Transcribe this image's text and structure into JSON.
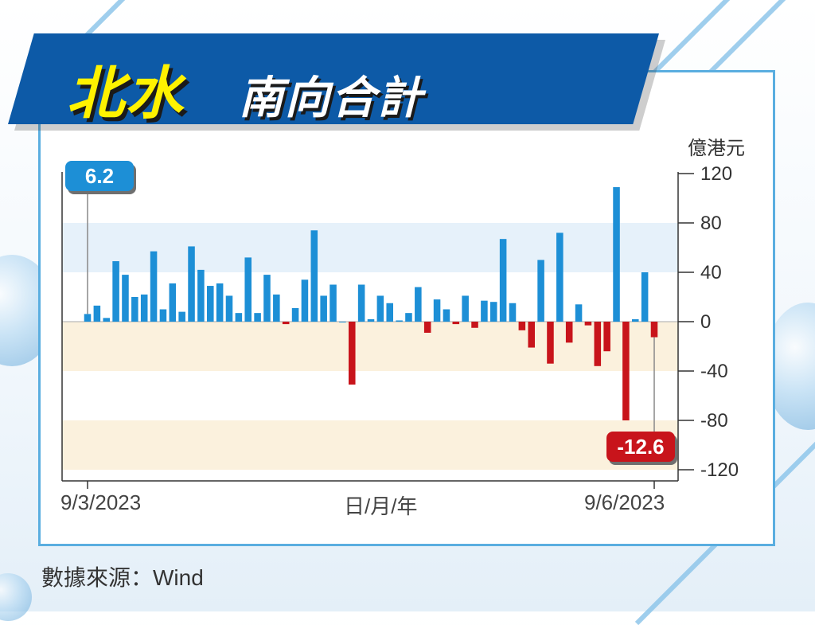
{
  "title": {
    "part1": "北水",
    "part2": "南向合計"
  },
  "source": "數據來源：Wind",
  "colors": {
    "positive": "#1d8fd6",
    "negative": "#c8141b",
    "banner": "#0d5aa7",
    "title_highlight": "#fff200"
  },
  "callouts": {
    "first_value": "6.2",
    "last_value": "-12.6"
  },
  "chart_data": {
    "type": "bar",
    "unit_label": "億港元",
    "xlabel": "日/月/年",
    "x_start_label": "9/3/2023",
    "x_end_label": "9/6/2023",
    "ylim": [
      -120,
      120
    ],
    "yticks": [
      120,
      80,
      40,
      0,
      -40,
      -80,
      -120
    ],
    "ytick_labels": [
      "120",
      "80",
      "40",
      "0",
      "-40",
      "-80",
      "-120"
    ],
    "bands": [
      [
        40,
        80
      ],
      [
        -40,
        0
      ],
      [
        -120,
        -80
      ]
    ],
    "values": [
      6.2,
      13,
      3,
      49,
      38,
      20,
      22,
      57,
      10,
      31,
      8,
      61,
      42,
      29,
      31,
      21,
      7,
      52,
      7,
      38,
      22,
      -2,
      11,
      34,
      74,
      21,
      30,
      0,
      -51,
      30,
      2,
      21,
      15,
      1,
      7,
      28,
      -9,
      18,
      10,
      -2,
      21,
      -5,
      17,
      16,
      67,
      15,
      -7,
      -21,
      50,
      -34,
      72,
      -17,
      14,
      -3,
      -36,
      -24,
      109,
      -80,
      2,
      40,
      -12.6
    ]
  }
}
